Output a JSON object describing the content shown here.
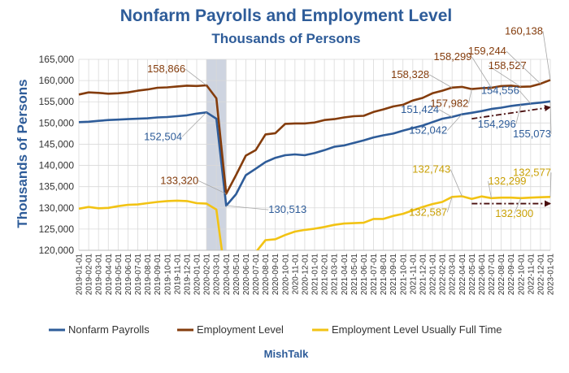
{
  "chart_data": {
    "type": "line",
    "title": "Nonfarm Payrolls and Employment Level",
    "subtitle": "Thousands of Persons",
    "ylabel": "Thousands of  Persons",
    "xlabel": "",
    "credit": "MishTalk",
    "ylim": [
      120000,
      165000
    ],
    "yticks": [
      "120,000",
      "125,000",
      "130,000",
      "135,000",
      "140,000",
      "145,000",
      "150,000",
      "155,000",
      "160,000",
      "165,000"
    ],
    "x": [
      "2019-01-01",
      "2019-02-01",
      "2019-03-01",
      "2019-04-01",
      "2019-05-01",
      "2019-06-01",
      "2019-07-01",
      "2019-08-01",
      "2019-09-01",
      "2019-10-01",
      "2019-11-01",
      "2019-12-01",
      "2020-01-01",
      "2020-02-01",
      "2020-03-01",
      "2020-04-01",
      "2020-05-01",
      "2020-06-01",
      "2020-07-01",
      "2020-08-01",
      "2020-09-01",
      "2020-10-01",
      "2020-11-01",
      "2020-12-01",
      "2021-01-01",
      "2021-02-01",
      "2021-03-01",
      "2021-04-01",
      "2021-05-01",
      "2021-06-01",
      "2021-07-01",
      "2021-08-01",
      "2021-09-01",
      "2021-10-01",
      "2021-11-01",
      "2021-12-01",
      "2022-01-01",
      "2022-02-01",
      "2022-03-01",
      "2022-04-01",
      "2022-05-01",
      "2022-06-01",
      "2022-07-01",
      "2022-08-01",
      "2022-09-01",
      "2022-10-01",
      "2022-11-01",
      "2022-12-01",
      "2023-01-01"
    ],
    "recession_shading": {
      "from": "2020-02-01",
      "to": "2020-04-01"
    },
    "series": [
      {
        "name": "Nonfarm Payrolls",
        "color": "#2E5C99",
        "values": [
          150200,
          150300,
          150500,
          150700,
          150800,
          150900,
          151000,
          151100,
          151300,
          151400,
          151600,
          151800,
          152200,
          152504,
          151000,
          130513,
          133200,
          137700,
          139200,
          140800,
          141800,
          142400,
          142600,
          142400,
          142900,
          143600,
          144400,
          144700,
          145300,
          145900,
          146600,
          147100,
          147500,
          148200,
          148800,
          149400,
          150200,
          151000,
          151424,
          152042,
          152400,
          152800,
          153300,
          153600,
          154000,
          154296,
          154556,
          154800,
          155073
        ]
      },
      {
        "name": "Employment Level",
        "color": "#843C0C",
        "values": [
          156700,
          157200,
          157100,
          156900,
          157000,
          157200,
          157600,
          157900,
          158300,
          158400,
          158600,
          158800,
          158714,
          158866,
          155800,
          133320,
          137700,
          142300,
          143600,
          147300,
          147600,
          149800,
          149900,
          149900,
          150100,
          150700,
          150900,
          151300,
          151600,
          151700,
          152600,
          153200,
          153900,
          154300,
          155300,
          155900,
          157000,
          157600,
          158328,
          158500,
          157982,
          158200,
          158299,
          158700,
          158800,
          158527,
          158600,
          159244,
          160138
        ]
      },
      {
        "name": "Employment Level Usually Full Time",
        "color": "#F2C314",
        "values": [
          129800,
          130200,
          129900,
          130000,
          130400,
          130700,
          130800,
          131100,
          131400,
          131600,
          131700,
          131600,
          131100,
          131000,
          129600,
          null,
          null,
          null,
          119500,
          122400,
          122600,
          123600,
          124400,
          124800,
          125100,
          125500,
          126000,
          126300,
          126400,
          126500,
          127400,
          127400,
          128100,
          128600,
          129400,
          130200,
          130900,
          131400,
          132587,
          132743,
          132100,
          132700,
          132299,
          132400,
          132400,
          132300,
          132400,
          132500,
          132577
        ]
      }
    ],
    "annotations": [
      {
        "series": 0,
        "date": "2020-02-01",
        "text": "152,504"
      },
      {
        "series": 0,
        "date": "2020-04-01",
        "text": "130,513"
      },
      {
        "series": 0,
        "date": "2022-03-01",
        "text": "151,424"
      },
      {
        "series": 0,
        "date": "2022-04-01",
        "text": "152,042"
      },
      {
        "series": 0,
        "date": "2022-10-01",
        "text": "154,296"
      },
      {
        "series": 0,
        "date": "2022-11-01",
        "text": "154,556"
      },
      {
        "series": 0,
        "date": "2023-01-01",
        "text": "155,073"
      },
      {
        "series": 1,
        "date": "2020-02-01",
        "text": "158,866"
      },
      {
        "series": 1,
        "date": "2020-04-01",
        "text": "133,320"
      },
      {
        "series": 1,
        "date": "2022-03-01",
        "text": "158,328"
      },
      {
        "series": 1,
        "date": "2022-05-01",
        "text": "157,982"
      },
      {
        "series": 1,
        "date": "2022-07-01",
        "text": "158,299"
      },
      {
        "series": 1,
        "date": "2022-10-01",
        "text": "158,527"
      },
      {
        "series": 1,
        "date": "2022-12-01",
        "text": "159,244"
      },
      {
        "series": 1,
        "date": "2023-01-01",
        "text": "160,138"
      },
      {
        "series": 2,
        "date": "2022-03-01",
        "text": "132,587"
      },
      {
        "series": 2,
        "date": "2022-04-01",
        "text": "132,743"
      },
      {
        "series": 2,
        "date": "2022-07-01",
        "text": "132,299"
      },
      {
        "series": 2,
        "date": "2022-10-01",
        "text": "132,300"
      },
      {
        "series": 2,
        "date": "2023-01-01",
        "text": "132,577"
      }
    ],
    "trend_arrows": [
      {
        "color": "#4A0F0F",
        "from": {
          "date": "2022-05-01",
          "value": 151000
        },
        "to": {
          "date": "2023-01-01",
          "value": 153700
        }
      },
      {
        "color": "#4A0F0F",
        "from": {
          "date": "2022-05-01",
          "value": 131000
        },
        "to": {
          "date": "2023-01-01",
          "value": 131000
        }
      }
    ],
    "legend_position": "bottom",
    "grid": {
      "vertical": true,
      "horizontal": true
    }
  }
}
